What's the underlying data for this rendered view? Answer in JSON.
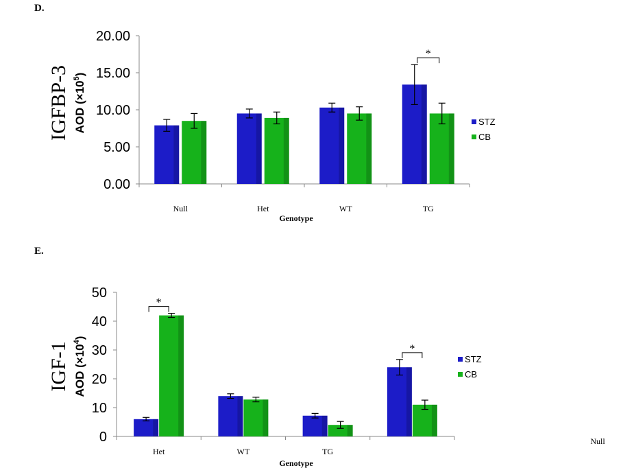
{
  "chart_data": [
    {
      "panel": "D.",
      "type": "bar",
      "ylabel_main": "IGFBP-3",
      "ylabel_unit": "AOD (×10",
      "ylabel_exp": "5",
      "ylabel_close": ")",
      "xlabel": "Genotype",
      "categories": [
        "Null",
        "Het",
        "WT",
        "TG"
      ],
      "ylim": [
        0,
        20
      ],
      "yticks": [
        "0.00",
        "5.00",
        "10.00",
        "15.00",
        "20.00"
      ],
      "series": [
        {
          "name": "STZ",
          "color": "#1c1cc8",
          "values": [
            7.9,
            9.5,
            10.3,
            13.4
          ],
          "errors": [
            0.8,
            0.6,
            0.6,
            2.7
          ]
        },
        {
          "name": "CB",
          "color": "#16b21b",
          "values": [
            8.5,
            8.9,
            9.5,
            9.5
          ],
          "errors": [
            1.0,
            0.8,
            0.9,
            1.4
          ]
        }
      ],
      "significance": [
        {
          "category": "TG",
          "label": "*"
        }
      ],
      "legend_position": "right"
    },
    {
      "panel": "E.",
      "type": "bar",
      "ylabel_main": "IGF-1",
      "ylabel_unit": "AOD (×10",
      "ylabel_exp": "4",
      "ylabel_close": ")",
      "xlabel": "Genotype",
      "categories": [
        "Het",
        "WT",
        "TG",
        ""
      ],
      "extra_label": "Null",
      "ylim": [
        0,
        50
      ],
      "yticks": [
        "0",
        "10",
        "20",
        "30",
        "40",
        "50"
      ],
      "series": [
        {
          "name": "STZ",
          "color": "#1c1cc8",
          "values": [
            6.0,
            14.0,
            7.2,
            24.0
          ],
          "errors": [
            0.6,
            0.8,
            0.8,
            2.7
          ]
        },
        {
          "name": "CB",
          "color": "#16b21b",
          "values": [
            42.0,
            12.8,
            4.0,
            11.0
          ],
          "errors": [
            0.7,
            0.8,
            1.2,
            1.6
          ]
        }
      ],
      "significance": [
        {
          "category_index": 0,
          "label": "*"
        },
        {
          "category_index": 3,
          "label": "*"
        }
      ],
      "legend_position": "right"
    }
  ]
}
